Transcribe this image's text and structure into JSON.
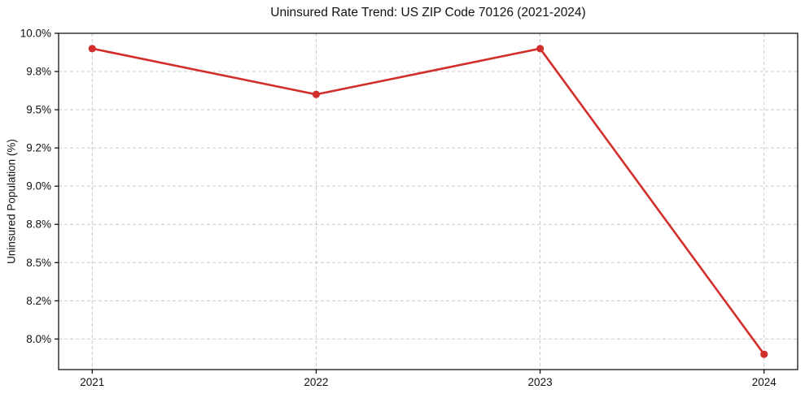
{
  "figure": {
    "background": "#ffffff"
  },
  "chart_data": {
    "type": "line",
    "title": "Uninsured Rate Trend: US ZIP Code 70126 (2021-2024)",
    "xlabel": "",
    "ylabel": "Uninsured Population (%)",
    "x": [
      2021,
      2022,
      2023,
      2024
    ],
    "x_tick_labels": [
      "2021",
      "2022",
      "2023",
      "2024"
    ],
    "series": [
      {
        "name": "uninsured-rate",
        "values": [
          9.9,
          9.6,
          9.9,
          7.9
        ],
        "color": "#d22f2c",
        "marker": "circle"
      }
    ],
    "y_ticks": [
      8.0,
      8.25,
      8.5,
      8.75,
      9.0,
      9.25,
      9.5,
      9.75,
      10.0
    ],
    "y_tick_labels": [
      "8.0%",
      "8.2%",
      "8.5%",
      "8.8%",
      "9.0%",
      "9.2%",
      "9.5%",
      "9.8%",
      "10.0%"
    ],
    "xlim": [
      2020.85,
      2024.15
    ],
    "ylim": [
      7.8,
      10.0
    ],
    "grid": true,
    "grid_color": "#c9c9c9",
    "grid_style": "dashed",
    "spine_color": "#000000",
    "tick_color": "#000000",
    "legend": "none"
  }
}
